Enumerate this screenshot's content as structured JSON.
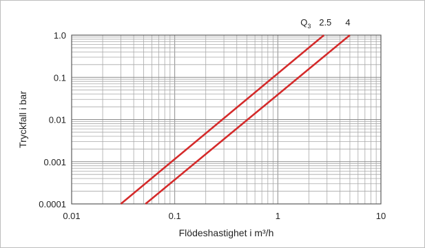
{
  "chart_data": {
    "type": "line",
    "title": "",
    "xlabel": "Flödeshastighet i m³/h",
    "ylabel": "Tryckfall i bar",
    "x_scale": "log",
    "y_scale": "log",
    "xlim": [
      0.01,
      10
    ],
    "ylim": [
      0.0001,
      1.0
    ],
    "x_ticks": [
      0.01,
      0.1,
      1,
      10
    ],
    "x_tick_labels": [
      "0.01",
      "0.1",
      "1",
      "10"
    ],
    "y_ticks": [
      0.0001,
      0.001,
      0.01,
      0.1,
      1.0
    ],
    "y_tick_labels": [
      "0.0001",
      "0.001",
      "0.01",
      "0.1",
      "1.0"
    ],
    "grid": true,
    "line_color": "#d42a2a",
    "series_label_prefix": "Q",
    "series_label_subscript": "3",
    "series": [
      {
        "name": "2.5",
        "points": [
          [
            0.03,
            0.0001
          ],
          [
            2.8,
            1.0
          ]
        ]
      },
      {
        "name": "4",
        "points": [
          [
            0.052,
            0.0001
          ],
          [
            5.0,
            1.0
          ]
        ]
      }
    ]
  }
}
